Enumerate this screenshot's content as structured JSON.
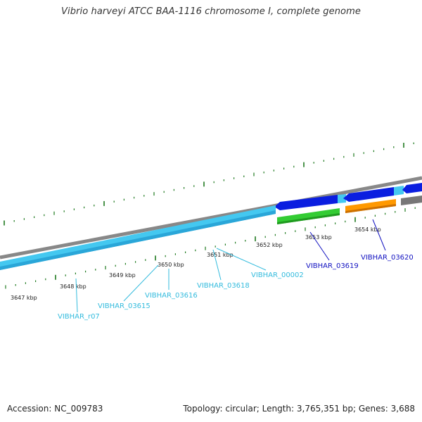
{
  "title": "Vibrio harveyi ATCC BAA-1116 chromosome I, complete genome",
  "footer": {
    "accession": "Accession: NC_009783",
    "topology": "Topology: circular; Length: 3,765,351 bp; Genes: 3,688"
  },
  "colors": {
    "backbone": "#888888",
    "light_blue_gene": "#44c8f0",
    "dark_blue_gene": "#0a1ee0",
    "green_gene": "#33cc33",
    "orange_gene": "#ff9900",
    "gray_gene": "#777777",
    "tick_green": "#1f7a1f",
    "label_light": "#33bbdd",
    "label_dark": "#1010c0"
  },
  "tick_labels": [
    "3647 kbp",
    "3648 kbp",
    "3649 kbp",
    "3650 kbp",
    "3651 kbp",
    "3652 kbp",
    "3653 kbp",
    "3654 kbp"
  ],
  "gene_labels": [
    {
      "text": "VIBHAR_r07",
      "style": "light"
    },
    {
      "text": "VIBHAR_03615",
      "style": "light"
    },
    {
      "text": "VIBHAR_03616",
      "style": "light"
    },
    {
      "text": "VIBHAR_03618",
      "style": "light"
    },
    {
      "text": "VIBHAR_00002",
      "style": "light"
    },
    {
      "text": "VIBHAR_03619",
      "style": "dark"
    },
    {
      "text": "VIBHAR_03620",
      "style": "dark"
    }
  ]
}
